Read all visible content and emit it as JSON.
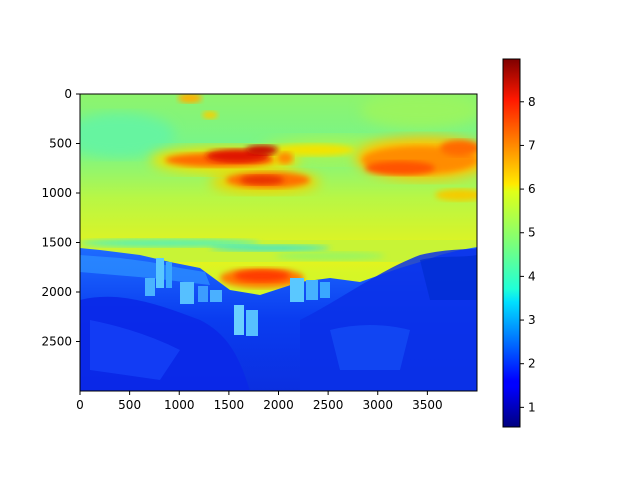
{
  "chart_data": {
    "type": "heatmap",
    "title": "",
    "xlabel": "",
    "ylabel": "",
    "colormap": "jet",
    "xlim": [
      0,
      4000
    ],
    "ylim": [
      3000,
      0
    ],
    "x_ticks": [
      0,
      500,
      1000,
      1500,
      2000,
      2500,
      3000,
      3500
    ],
    "y_ticks": [
      0,
      500,
      1000,
      1500,
      2000,
      2500
    ],
    "colorbar": {
      "range": [
        0.55,
        8.98
      ],
      "ticks": [
        1,
        2,
        3,
        4,
        5,
        6,
        7,
        8
      ]
    },
    "grid": false,
    "legend": "none"
  }
}
